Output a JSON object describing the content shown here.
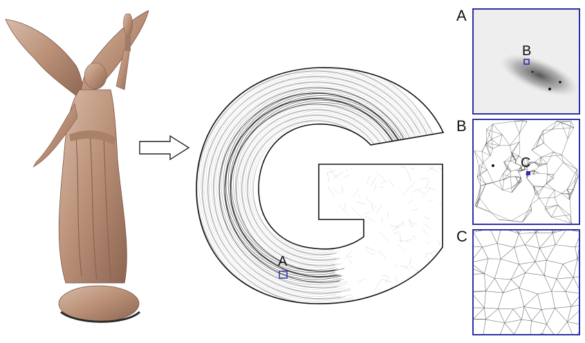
{
  "figure": {
    "source_model": {
      "icon": "statue-icon",
      "color": "#c7a48f"
    },
    "arrow": {
      "icon": "right-arrow-icon"
    },
    "parameterization": {
      "glyph": "G",
      "marker_label": "A"
    },
    "insets": [
      {
        "id": "A",
        "label": "A",
        "marker_label": "B"
      },
      {
        "id": "B",
        "label": "B",
        "marker_label": "C"
      },
      {
        "id": "C",
        "label": "C",
        "marker_label": ""
      }
    ],
    "colors": {
      "frame": "#2b2fa8",
      "mesh": "#3a3a3a"
    }
  }
}
